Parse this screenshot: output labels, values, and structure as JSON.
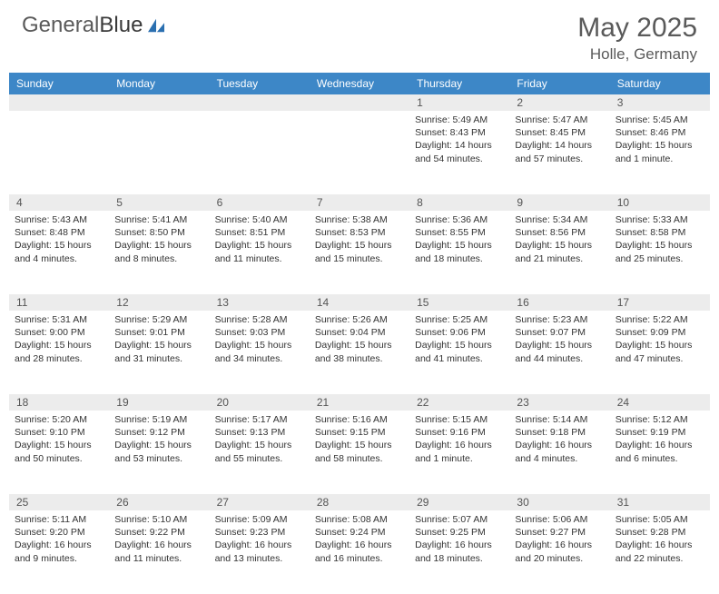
{
  "logo": {
    "textA": "General",
    "textB": "Blue"
  },
  "header": {
    "month": "May 2025",
    "location": "Holle, Germany"
  },
  "columns": [
    "Sunday",
    "Monday",
    "Tuesday",
    "Wednesday",
    "Thursday",
    "Friday",
    "Saturday"
  ],
  "colors": {
    "header_bg": "#3d87c7",
    "header_fg": "#ffffff",
    "daynum_bg": "#ececec",
    "text": "#333333",
    "title": "#5a5a5a"
  },
  "weeks": [
    [
      null,
      null,
      null,
      null,
      {
        "n": "1",
        "sr": "5:49 AM",
        "ss": "8:43 PM",
        "dl": "14 hours and 54 minutes."
      },
      {
        "n": "2",
        "sr": "5:47 AM",
        "ss": "8:45 PM",
        "dl": "14 hours and 57 minutes."
      },
      {
        "n": "3",
        "sr": "5:45 AM",
        "ss": "8:46 PM",
        "dl": "15 hours and 1 minute."
      }
    ],
    [
      {
        "n": "4",
        "sr": "5:43 AM",
        "ss": "8:48 PM",
        "dl": "15 hours and 4 minutes."
      },
      {
        "n": "5",
        "sr": "5:41 AM",
        "ss": "8:50 PM",
        "dl": "15 hours and 8 minutes."
      },
      {
        "n": "6",
        "sr": "5:40 AM",
        "ss": "8:51 PM",
        "dl": "15 hours and 11 minutes."
      },
      {
        "n": "7",
        "sr": "5:38 AM",
        "ss": "8:53 PM",
        "dl": "15 hours and 15 minutes."
      },
      {
        "n": "8",
        "sr": "5:36 AM",
        "ss": "8:55 PM",
        "dl": "15 hours and 18 minutes."
      },
      {
        "n": "9",
        "sr": "5:34 AM",
        "ss": "8:56 PM",
        "dl": "15 hours and 21 minutes."
      },
      {
        "n": "10",
        "sr": "5:33 AM",
        "ss": "8:58 PM",
        "dl": "15 hours and 25 minutes."
      }
    ],
    [
      {
        "n": "11",
        "sr": "5:31 AM",
        "ss": "9:00 PM",
        "dl": "15 hours and 28 minutes."
      },
      {
        "n": "12",
        "sr": "5:29 AM",
        "ss": "9:01 PM",
        "dl": "15 hours and 31 minutes."
      },
      {
        "n": "13",
        "sr": "5:28 AM",
        "ss": "9:03 PM",
        "dl": "15 hours and 34 minutes."
      },
      {
        "n": "14",
        "sr": "5:26 AM",
        "ss": "9:04 PM",
        "dl": "15 hours and 38 minutes."
      },
      {
        "n": "15",
        "sr": "5:25 AM",
        "ss": "9:06 PM",
        "dl": "15 hours and 41 minutes."
      },
      {
        "n": "16",
        "sr": "5:23 AM",
        "ss": "9:07 PM",
        "dl": "15 hours and 44 minutes."
      },
      {
        "n": "17",
        "sr": "5:22 AM",
        "ss": "9:09 PM",
        "dl": "15 hours and 47 minutes."
      }
    ],
    [
      {
        "n": "18",
        "sr": "5:20 AM",
        "ss": "9:10 PM",
        "dl": "15 hours and 50 minutes."
      },
      {
        "n": "19",
        "sr": "5:19 AM",
        "ss": "9:12 PM",
        "dl": "15 hours and 53 minutes."
      },
      {
        "n": "20",
        "sr": "5:17 AM",
        "ss": "9:13 PM",
        "dl": "15 hours and 55 minutes."
      },
      {
        "n": "21",
        "sr": "5:16 AM",
        "ss": "9:15 PM",
        "dl": "15 hours and 58 minutes."
      },
      {
        "n": "22",
        "sr": "5:15 AM",
        "ss": "9:16 PM",
        "dl": "16 hours and 1 minute."
      },
      {
        "n": "23",
        "sr": "5:14 AM",
        "ss": "9:18 PM",
        "dl": "16 hours and 4 minutes."
      },
      {
        "n": "24",
        "sr": "5:12 AM",
        "ss": "9:19 PM",
        "dl": "16 hours and 6 minutes."
      }
    ],
    [
      {
        "n": "25",
        "sr": "5:11 AM",
        "ss": "9:20 PM",
        "dl": "16 hours and 9 minutes."
      },
      {
        "n": "26",
        "sr": "5:10 AM",
        "ss": "9:22 PM",
        "dl": "16 hours and 11 minutes."
      },
      {
        "n": "27",
        "sr": "5:09 AM",
        "ss": "9:23 PM",
        "dl": "16 hours and 13 minutes."
      },
      {
        "n": "28",
        "sr": "5:08 AM",
        "ss": "9:24 PM",
        "dl": "16 hours and 16 minutes."
      },
      {
        "n": "29",
        "sr": "5:07 AM",
        "ss": "9:25 PM",
        "dl": "16 hours and 18 minutes."
      },
      {
        "n": "30",
        "sr": "5:06 AM",
        "ss": "9:27 PM",
        "dl": "16 hours and 20 minutes."
      },
      {
        "n": "31",
        "sr": "5:05 AM",
        "ss": "9:28 PM",
        "dl": "16 hours and 22 minutes."
      }
    ]
  ],
  "labels": {
    "sunrise": "Sunrise:",
    "sunset": "Sunset:",
    "daylight": "Daylight:"
  }
}
